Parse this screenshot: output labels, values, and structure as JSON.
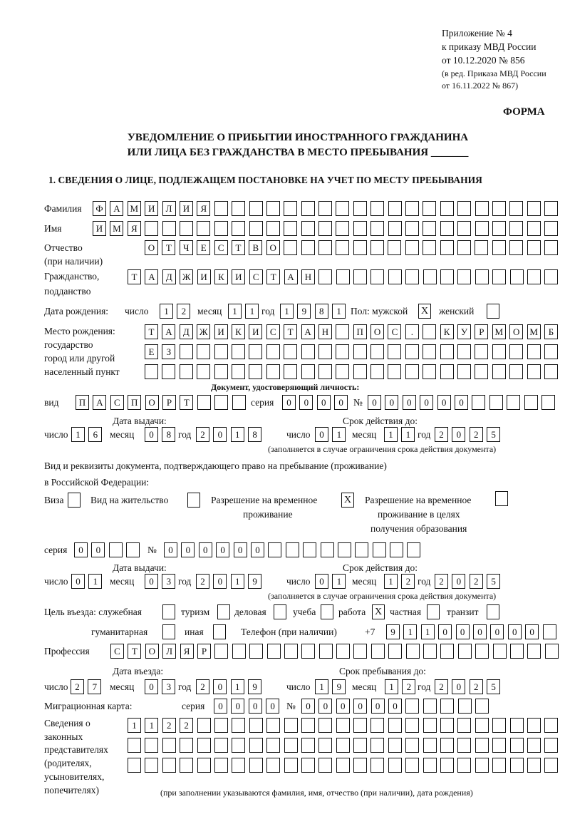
{
  "header": {
    "line1": "Приложение № 4",
    "line2": "к приказу МВД России",
    "line3": "от 10.12.2020 № 856",
    "line4": "(в ред. Приказа МВД России",
    "line5": "от 16.11.2022 № 867)",
    "forma": "ФОРМА"
  },
  "title": {
    "line1": "УВЕДОМЛЕНИЕ О ПРИБЫТИИ ИНОСТРАННОГО ГРАЖДАНИНА",
    "line2": "ИЛИ ЛИЦА БЕЗ ГРАЖДАНСТВА В МЕСТО ПРЕБЫВАНИЯ _______"
  },
  "section1": "1. СВЕДЕНИЯ О ЛИЦЕ, ПОДЛЕЖАЩЕМ ПОСТАНОВКЕ НА УЧЕТ ПО МЕСТУ ПРЕБЫВАНИЯ",
  "labels": {
    "surname": "Фамилия",
    "name": "Имя",
    "patronymic": "Отчество",
    "patronymic2": "(при наличии)",
    "citizenship": "Гражданство,",
    "citizenship2": "подданство",
    "dob": "Дата рождения:",
    "day": "число",
    "month": "месяц",
    "year": "год",
    "sex": "Пол: мужской",
    "female": "женский",
    "birthplace1": "Место рождения:",
    "birthplace2": "государство",
    "birthplace3": "город или другой",
    "birthplace4": "населенный пункт",
    "idDoc": "Документ, удостоверяющий личность:",
    "kind": "вид",
    "series": "серия",
    "number": "№",
    "issueDate": "Дата выдачи:",
    "validTo": "Срок действия до:",
    "validNote": "(заполняется в случае ограничения срока действия документа)",
    "rightDoc1": "Вид и реквизиты документа, подтверждающего право на пребывание (проживание)",
    "rightDoc2": "в Российской Федерации:",
    "visa": "Виза",
    "residence": "Вид на жительство",
    "trp1": "Разрешение на временное",
    "trp2": "проживание",
    "trpEdu1": "Разрешение на временное",
    "trpEdu2": "проживание в целях",
    "trpEdu3": "получения образования",
    "purpose": "Цель въезда: служебная",
    "tourism": "туризм",
    "business": "деловая",
    "study": "учеба",
    "work": "работа",
    "private": "частная",
    "transit": "транзит",
    "humanitarian": "гуманитарная",
    "other": "иная",
    "phone": "Телефон (при наличии)",
    "phonePrefix": "+7",
    "profession": "Профессия",
    "entryDate": "Дата въезда:",
    "stayUntil": "Срок пребывания до:",
    "migCard": "Миграционная карта:",
    "rep1": "Сведения о",
    "rep2": "законных",
    "rep3": "представителях",
    "rep4": "(родителях,",
    "rep5": "усыновителях,",
    "rep6": "попечителях)",
    "repNote": "(при заполнении указываются фамилия, имя, отчество (при наличии), дата рождения)"
  },
  "values": {
    "surname": "ФАМИЛИЯ",
    "name": "ИМЯ",
    "patronymic": "ОТЧЕСТВО",
    "citizenship": "ТАДЖИКИСТАН",
    "dob": {
      "day": "12",
      "month": "11",
      "year": "1981"
    },
    "sex": {
      "male": true,
      "female": false
    },
    "birthplace": [
      "ТАДЖИКИСТАН ПОС. КУРМОМБ",
      "ЕЗ",
      ""
    ],
    "idDoc": {
      "kind": "ПАСПОРТ",
      "series": "0000",
      "number": "000000",
      "issue": {
        "day": "16",
        "month": "08",
        "year": "2018"
      },
      "valid": {
        "day": "01",
        "month": "11",
        "year": "2025"
      }
    },
    "rightDoc": {
      "visa": false,
      "residence": false,
      "trp": true,
      "trpEdu": false,
      "series": "00",
      "number": "000000",
      "issue": {
        "day": "01",
        "month": "03",
        "year": "2019"
      },
      "valid": {
        "day": "01",
        "month": "12",
        "year": "2025"
      }
    },
    "purpose": {
      "official": false,
      "tourism": false,
      "business": false,
      "study": false,
      "work": true,
      "private": false,
      "transit": false,
      "humanitarian": false,
      "other": false
    },
    "phone": "911000000",
    "profession": "СТОЛЯР",
    "entry": {
      "day": "27",
      "month": "03",
      "year": "2019"
    },
    "stay": {
      "day": "19",
      "month": "12",
      "year": "2025"
    },
    "migCard": {
      "series": "0000",
      "number": "000000"
    },
    "representatives": [
      "1122",
      "",
      ""
    ]
  }
}
